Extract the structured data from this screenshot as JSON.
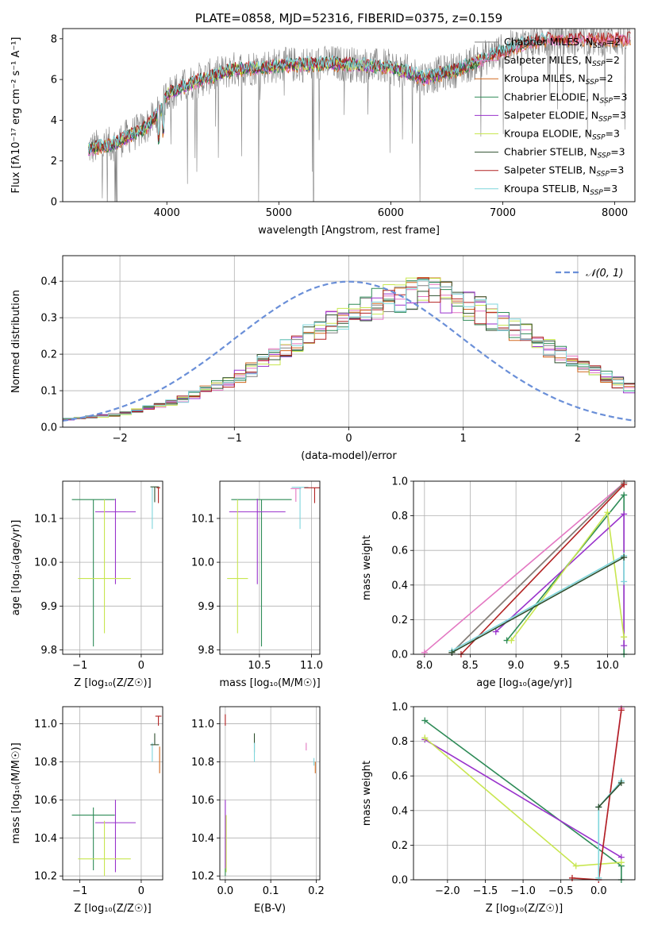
{
  "colors": {
    "chabrier_miles": "#808080",
    "salpeter_miles": "#e377c2",
    "kroupa_miles": "#d2691e",
    "chabrier_elodie": "#2e8b57",
    "salpeter_elodie": "#9932cc",
    "kroupa_elodie": "#c8e650",
    "chabrier_stelib": "#2f4f2f",
    "salpeter_stelib": "#b22222",
    "kroupa_stelib": "#7fd6dc",
    "gaussian": "#6a8fd8",
    "grid": "#b0b0b0"
  },
  "chart_data": [
    {
      "id": "spectrum",
      "type": "line",
      "title": "PLATE=0858, MJD=52316, FIBERID=0375, z=0.159",
      "xlabel": "wavelength [Angstrom, rest frame]",
      "ylabel": "Flux [fλ10⁻¹⁷ erg cm⁻² s⁻¹ A⁻¹]",
      "xlim": [
        3070,
        8180
      ],
      "ylim": [
        0,
        8.5
      ],
      "xticks": [
        4000,
        5000,
        6000,
        7000,
        8000
      ],
      "yticks": [
        0,
        2,
        4,
        6,
        8
      ],
      "grid": false,
      "legend_position": "top-right",
      "continuum_knots": {
        "x": [
          3300,
          3500,
          3800,
          3950,
          4000,
          4300,
          4600,
          5000,
          5500,
          6000,
          6300,
          6600,
          6900,
          7200,
          7400
        ],
        "y": [
          2.6,
          2.8,
          3.6,
          4.5,
          5.3,
          6.0,
          6.5,
          6.7,
          6.8,
          6.6,
          6.1,
          6.5,
          7.2,
          7.8,
          8.0
        ]
      },
      "legend": [
        {
          "label": "Chabrier MILES, N",
          "sub": "SSP",
          "suffix": "=2",
          "color_key": "chabrier_miles"
        },
        {
          "label": "Salpeter MILES, N",
          "sub": "SSP",
          "suffix": "=2",
          "color_key": "salpeter_miles"
        },
        {
          "label": "Kroupa MILES, N",
          "sub": "SSP",
          "suffix": "=2",
          "color_key": "kroupa_miles"
        },
        {
          "label": "Chabrier ELODIE, N",
          "sub": "SSP",
          "suffix": "=3",
          "color_key": "chabrier_elodie"
        },
        {
          "label": "Salpeter ELODIE, N",
          "sub": "SSP",
          "suffix": "=3",
          "color_key": "salpeter_elodie"
        },
        {
          "label": "Kroupa ELODIE, N",
          "sub": "SSP",
          "suffix": "=3",
          "color_key": "kroupa_elodie"
        },
        {
          "label": "Chabrier STELIB, N",
          "sub": "SSP",
          "suffix": "=3",
          "color_key": "chabrier_stelib"
        },
        {
          "label": "Salpeter STELIB, N",
          "sub": "SSP",
          "suffix": "=3",
          "color_key": "salpeter_stelib"
        },
        {
          "label": "Kroupa STELIB, N",
          "sub": "SSP",
          "suffix": "=3",
          "color_key": "kroupa_stelib"
        }
      ]
    },
    {
      "id": "residuals",
      "type": "line",
      "xlabel": "(data-model)/error",
      "ylabel": "Normed distribution",
      "xlim": [
        -2.5,
        2.5
      ],
      "ylim": [
        0,
        0.47
      ],
      "xticks": [
        -2,
        -1,
        0,
        1,
        2
      ],
      "yticks": [
        0.0,
        0.1,
        0.2,
        0.3,
        0.4
      ],
      "grid": true,
      "legend_position": "top-right",
      "legend": [
        {
          "label": "𝒩(0, 1)",
          "color_key": "gaussian"
        }
      ],
      "bin_width": 0.1,
      "series_colors": [
        "chabrier_miles",
        "salpeter_miles",
        "kroupa_miles",
        "chabrier_elodie",
        "salpeter_elodie",
        "kroupa_elodie",
        "chabrier_stelib",
        "salpeter_stelib",
        "kroupa_stelib"
      ],
      "envelope": {
        "x": [
          -2.5,
          -2.0,
          -1.5,
          -1.0,
          -0.5,
          0.0,
          0.5,
          0.8,
          1.2,
          1.6,
          2.0,
          2.5
        ],
        "y": [
          0.02,
          0.035,
          0.07,
          0.13,
          0.22,
          0.31,
          0.36,
          0.36,
          0.31,
          0.24,
          0.17,
          0.1
        ]
      }
    },
    {
      "id": "age_vs_Z",
      "type": "scatter",
      "xlabel": "Z [log₁₀(Z/Z☉)]",
      "ylabel": "age  [log₁₀(age/yr)]",
      "xlim": [
        -1.28,
        0.35
      ],
      "ylim": [
        9.79,
        10.185
      ],
      "xticks": [
        -1,
        0
      ],
      "yticks": [
        9.8,
        9.9,
        10.0,
        10.1
      ],
      "grid": true,
      "points": [
        {
          "x": -0.78,
          "xerr": 0.35,
          "y": 10.143,
          "yerr_low": 0.335,
          "yerr_high": 0.0,
          "color_key": "chabrier_elodie"
        },
        {
          "x": -0.42,
          "xerr": 0.33,
          "y": 10.115,
          "yerr_low": 0.165,
          "yerr_high": 0.03,
          "color_key": "salpeter_elodie"
        },
        {
          "x": -0.6,
          "xerr": 0.43,
          "y": 9.963,
          "yerr_low": 0.125,
          "yerr_high": 0.18,
          "color_key": "kroupa_elodie"
        },
        {
          "x": 0.18,
          "xerr": 0.0,
          "y": 10.171,
          "yerr_low": 0.095,
          "yerr_high": 0.0,
          "color_key": "kroupa_stelib"
        },
        {
          "x": 0.22,
          "xerr": 0.07,
          "y": 10.172,
          "yerr_low": 0.035,
          "yerr_high": 0.0,
          "color_key": "chabrier_stelib"
        },
        {
          "x": 0.28,
          "xerr": 0.03,
          "y": 10.17,
          "yerr_low": 0.035,
          "yerr_high": 0.0,
          "color_key": "salpeter_stelib"
        }
      ]
    },
    {
      "id": "age_vs_mass",
      "type": "scatter",
      "xlabel": "mass [log₁₀(M/M☉)]",
      "xlim": [
        10.12,
        11.08
      ],
      "ylim": [
        9.79,
        10.185
      ],
      "xticks": [
        10.5,
        11.0
      ],
      "yticks": [
        9.8,
        9.9,
        10.0,
        10.1
      ],
      "grid": true,
      "points": [
        {
          "x": 10.52,
          "xerr": 0.29,
          "y": 10.143,
          "yerr_low": 0.335,
          "yerr_high": 0.0,
          "color_key": "chabrier_elodie"
        },
        {
          "x": 10.48,
          "xerr": 0.27,
          "y": 10.115,
          "yerr_low": 0.165,
          "yerr_high": 0.03,
          "color_key": "salpeter_elodie"
        },
        {
          "x": 10.29,
          "xerr": 0.1,
          "y": 9.963,
          "yerr_low": 0.125,
          "yerr_high": 0.18,
          "color_key": "kroupa_elodie"
        },
        {
          "x": 10.85,
          "xerr": 0.05,
          "y": 10.168,
          "yerr_low": 0.03,
          "yerr_high": 0.0,
          "color_key": "salpeter_miles"
        },
        {
          "x": 10.89,
          "xerr": 0.08,
          "y": 10.171,
          "yerr_low": 0.095,
          "yerr_high": 0.0,
          "color_key": "kroupa_stelib"
        },
        {
          "x": 11.03,
          "xerr": 0.1,
          "y": 10.17,
          "yerr_low": 0.035,
          "yerr_high": 0.0,
          "color_key": "salpeter_stelib"
        }
      ]
    },
    {
      "id": "weight_vs_age",
      "type": "line",
      "xlabel": "age  [log₁₀(age/yr)]",
      "ylabel": "mass weight",
      "xlim": [
        7.88,
        10.3
      ],
      "ylim": [
        0,
        1.0
      ],
      "xticks": [
        8.0,
        8.5,
        9.0,
        9.5,
        10.0
      ],
      "yticks": [
        0.0,
        0.2,
        0.4,
        0.6,
        0.8,
        1.0
      ],
      "grid": true,
      "series": [
        {
          "color_key": "salpeter_miles",
          "x": [
            8.0,
            10.18
          ],
          "y": [
            0.01,
            0.99
          ]
        },
        {
          "color_key": "kroupa_miles",
          "x": [
            8.3,
            10.18
          ],
          "y": [
            0.01,
            0.99
          ]
        },
        {
          "color_key": "chabrier_miles",
          "x": [
            8.3,
            10.18
          ],
          "y": [
            0.01,
            0.99
          ]
        },
        {
          "color_key": "salpeter_stelib",
          "x": [
            8.4,
            10.18
          ],
          "y": [
            0.0,
            0.98
          ]
        },
        {
          "color_key": "chabrier_elodie",
          "x": [
            8.9,
            10.18,
            10.18
          ],
          "y": [
            0.08,
            0.92,
            0.0
          ]
        },
        {
          "color_key": "salpeter_elodie",
          "x": [
            8.78,
            10.18,
            10.18
          ],
          "y": [
            0.13,
            0.81,
            0.05
          ]
        },
        {
          "color_key": "kroupa_elodie",
          "x": [
            8.95,
            10.0,
            10.18
          ],
          "y": [
            0.08,
            0.82,
            0.1
          ]
        },
        {
          "color_key": "kroupa_stelib",
          "x": [
            8.3,
            10.18,
            10.18
          ],
          "y": [
            0.02,
            0.57,
            0.42
          ]
        },
        {
          "color_key": "chabrier_stelib",
          "x": [
            8.3,
            10.18
          ],
          "y": [
            0.01,
            0.56
          ]
        }
      ]
    },
    {
      "id": "mass_vs_Z",
      "type": "scatter",
      "xlabel": "Z [log₁₀(Z/Z☉)]",
      "ylabel": "mass [log₁₀(M/M☉)]",
      "xlim": [
        -1.28,
        0.35
      ],
      "ylim": [
        10.18,
        11.09
      ],
      "xticks": [
        -1,
        0
      ],
      "yticks": [
        10.2,
        10.4,
        10.6,
        10.8,
        11.0
      ],
      "grid": true,
      "points": [
        {
          "x": -0.78,
          "xerr": 0.35,
          "y": 10.52,
          "yerr_low": 0.29,
          "yerr_high": 0.04,
          "color_key": "chabrier_elodie"
        },
        {
          "x": -0.42,
          "xerr": 0.33,
          "y": 10.48,
          "yerr_low": 0.26,
          "yerr_high": 0.12,
          "color_key": "salpeter_elodie"
        },
        {
          "x": -0.6,
          "xerr": 0.43,
          "y": 10.29,
          "yerr_low": 0.09,
          "yerr_high": 0.2,
          "color_key": "kroupa_elodie"
        },
        {
          "x": 0.18,
          "xerr": 0.0,
          "y": 10.87,
          "yerr_low": 0.07,
          "yerr_high": 0.03,
          "color_key": "kroupa_stelib"
        },
        {
          "x": 0.22,
          "xerr": 0.07,
          "y": 10.89,
          "yerr_low": 0.0,
          "yerr_high": 0.06,
          "color_key": "chabrier_stelib"
        },
        {
          "x": 0.28,
          "xerr": 0.05,
          "y": 11.04,
          "yerr_low": 0.05,
          "yerr_high": 0.0,
          "color_key": "salpeter_stelib"
        },
        {
          "x": 0.3,
          "xerr": 0.0,
          "y": 10.8,
          "yerr_low": 0.06,
          "yerr_high": 0.08,
          "color_key": "kroupa_miles"
        }
      ]
    },
    {
      "id": "mass_vs_ebv",
      "type": "scatter",
      "xlabel": "E(B-V)",
      "xlim": [
        -0.012,
        0.208
      ],
      "ylim": [
        10.18,
        11.09
      ],
      "xticks": [
        0.0,
        0.1,
        0.2
      ],
      "yticks": [
        10.2,
        10.4,
        10.6,
        10.8,
        11.0
      ],
      "grid": true,
      "points": [
        {
          "x": 0.0,
          "y": 11.02,
          "yerr_low": 0.03,
          "yerr_high": 0.03,
          "color_key": "salpeter_stelib"
        },
        {
          "x": 0.0,
          "y": 10.52,
          "yerr_low": 0.28,
          "yerr_high": 0.08,
          "color_key": "salpeter_elodie"
        },
        {
          "x": 0.002,
          "y": 10.3,
          "yerr_low": 0.08,
          "yerr_high": 0.22,
          "color_key": "kroupa_elodie"
        },
        {
          "x": 0.0,
          "y": 10.22,
          "yerr_low": 0.02,
          "yerr_high": 0.02,
          "color_key": "chabrier_elodie"
        },
        {
          "x": 0.064,
          "y": 10.89,
          "yerr_low": 0.04,
          "yerr_high": 0.06,
          "color_key": "chabrier_stelib"
        },
        {
          "x": 0.064,
          "y": 10.85,
          "yerr_low": 0.05,
          "yerr_high": 0.05,
          "color_key": "kroupa_stelib"
        },
        {
          "x": 0.178,
          "y": 10.88,
          "yerr_low": 0.02,
          "yerr_high": 0.02,
          "color_key": "salpeter_miles"
        },
        {
          "x": 0.195,
          "y": 10.8,
          "yerr_low": 0.02,
          "yerr_high": 0.02,
          "color_key": "kroupa_stelib"
        },
        {
          "x": 0.198,
          "y": 10.78,
          "yerr_low": 0.04,
          "yerr_high": 0.02,
          "color_key": "kroupa_miles"
        }
      ]
    },
    {
      "id": "weight_vs_Z",
      "type": "line",
      "xlabel": "Z [log₁₀(Z/Z☉)]",
      "ylabel": "mass weight",
      "xlim": [
        -2.45,
        0.48
      ],
      "ylim": [
        0,
        1.0
      ],
      "xticks": [
        -2.0,
        -1.5,
        -1.0,
        -0.5,
        0.0
      ],
      "yticks": [
        0.0,
        0.2,
        0.4,
        0.6,
        0.8,
        1.0
      ],
      "grid": true,
      "series": [
        {
          "color_key": "salpeter_miles",
          "x": [
            0.0,
            0.3
          ],
          "y": [
            0.0,
            0.99
          ]
        },
        {
          "color_key": "chabrier_elodie",
          "x": [
            -2.3,
            0.3,
            0.3
          ],
          "y": [
            0.92,
            0.08,
            0.0
          ]
        },
        {
          "color_key": "salpeter_elodie",
          "x": [
            -2.3,
            0.3
          ],
          "y": [
            0.81,
            0.13
          ]
        },
        {
          "color_key": "kroupa_elodie",
          "x": [
            -2.3,
            -0.3,
            0.3
          ],
          "y": [
            0.82,
            0.08,
            0.1
          ]
        },
        {
          "color_key": "salpeter_stelib",
          "x": [
            -0.35,
            0.0,
            0.3
          ],
          "y": [
            0.01,
            0.0,
            0.98
          ]
        },
        {
          "color_key": "kroupa_stelib",
          "x": [
            0.0,
            0.0,
            0.3
          ],
          "y": [
            0.01,
            0.42,
            0.57
          ]
        },
        {
          "color_key": "chabrier_stelib",
          "x": [
            0.0,
            0.3
          ],
          "y": [
            0.42,
            0.56
          ]
        }
      ]
    }
  ]
}
